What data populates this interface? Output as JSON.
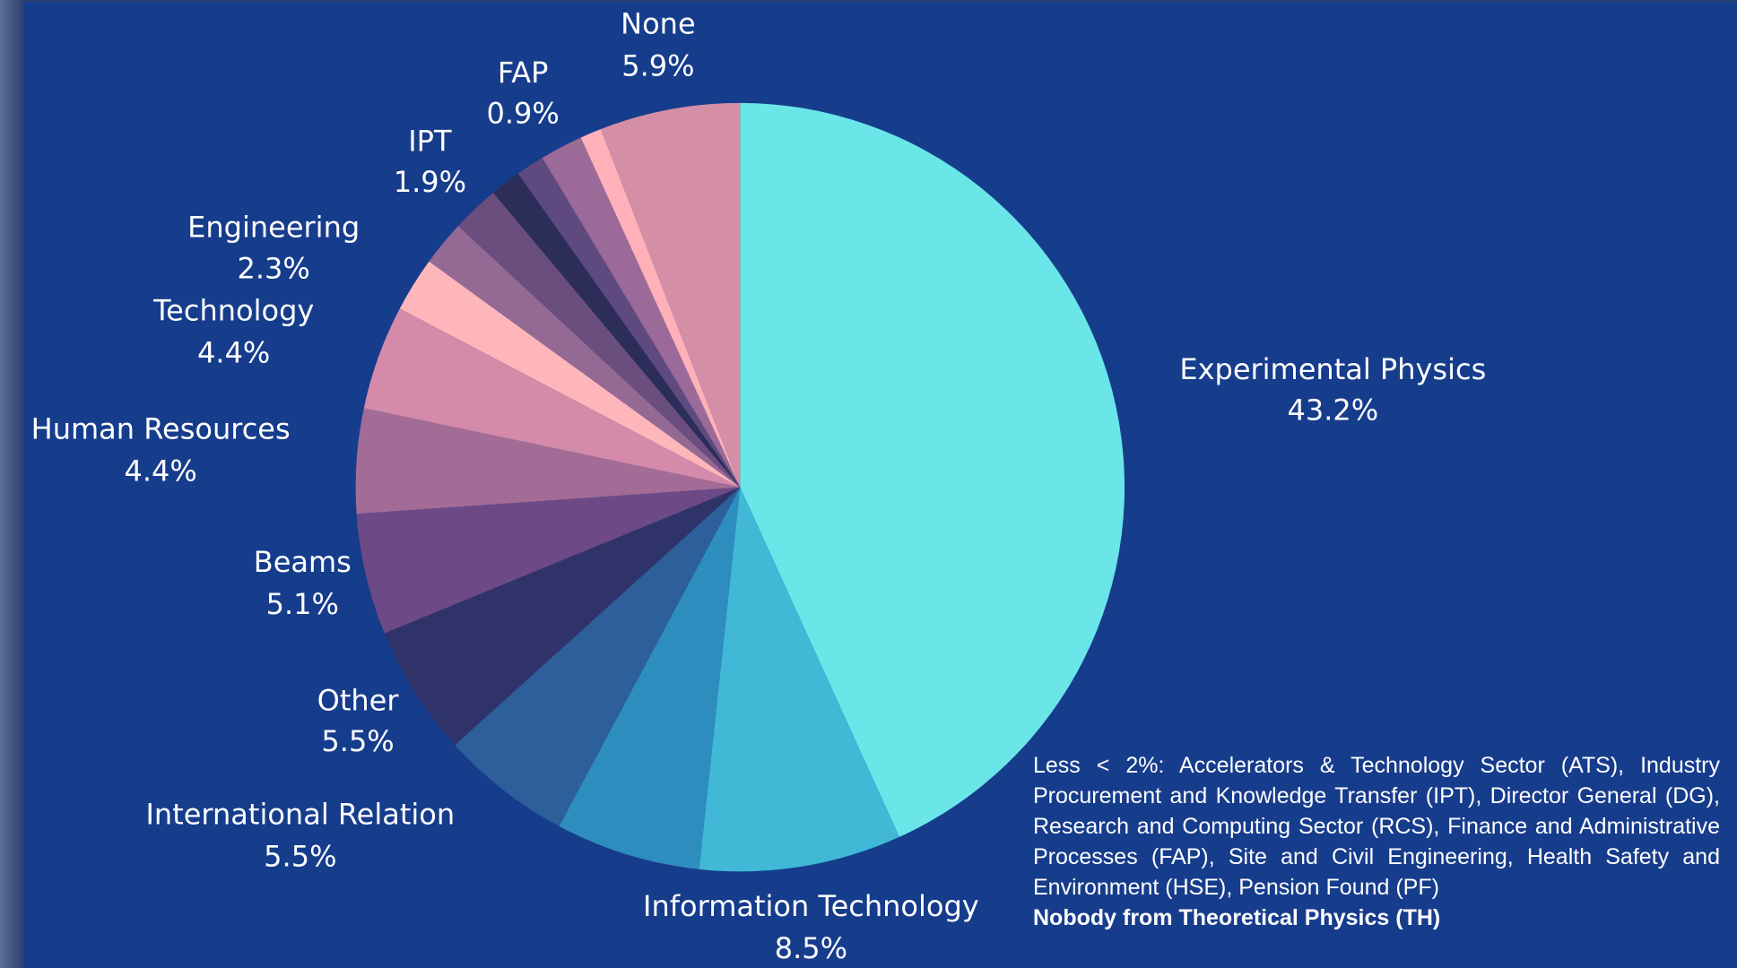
{
  "chart_data": {
    "type": "pie",
    "categories": [
      "Experimental Physics",
      "Information Technology",
      null,
      "International Relation",
      "Other",
      "Beams",
      "Human Resources",
      "Technology",
      "Engineering",
      "IPT",
      null,
      null,
      null,
      null,
      "FAP",
      "None"
    ],
    "values": [
      43.2,
      8.5,
      6.1,
      5.5,
      5.5,
      5.1,
      4.4,
      4.4,
      2.3,
      1.9,
      2.0,
      1.3,
      1.2,
      1.8,
      0.9,
      5.9
    ],
    "value_labels": [
      "43.2%",
      "8.5%",
      null,
      "5.5%",
      "5.5%",
      "5.1%",
      "4.4%",
      "4.4%",
      "2.3%",
      "1.9%",
      null,
      null,
      null,
      null,
      "0.9%",
      "5.9%"
    ],
    "colors": [
      "#6ae5e8",
      "#40b8d6",
      "#2e8dbf",
      "#2d5f9a",
      "#30336a",
      "#6d4a85",
      "#a36c97",
      "#d48aa8",
      "#ffb6bb",
      "#946a94",
      "#6a4e7d",
      "#2d2d5a",
      "#5e4a7e",
      "#9c6a98",
      "#ffb0b8",
      "#d48ea6"
    ],
    "note": "Less < 2%: Accelerators & Technology Sector (ATS), Industry Procurement and Knowledge Transfer (IPT), Director General (DG), Research and Computing Sector (RCS), Finance and Administrative Processes (FAP), Site and Civil Engineering, Health Safety and Environment (HSE), Pension Found (PF)",
    "note_bold": "Nobody from Theoretical Physics (TH)"
  }
}
